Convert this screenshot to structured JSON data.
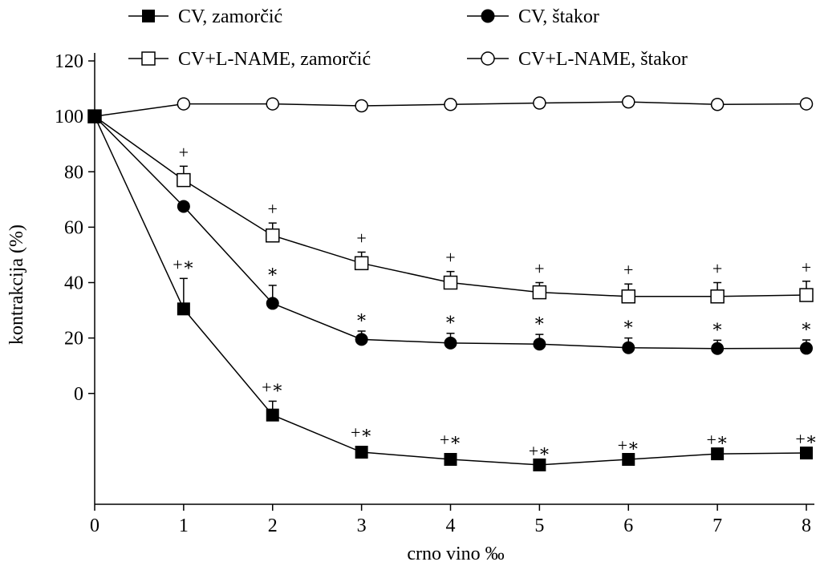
{
  "chart_data": {
    "type": "line",
    "xlabel": "crno vino ‰",
    "ylabel": "kontrakcija (%)",
    "x": [
      0,
      1,
      2,
      3,
      4,
      5,
      6,
      7,
      8
    ],
    "xlim": [
      0,
      8
    ],
    "ylim": [
      -40,
      120
    ],
    "x_ticks": [
      "0",
      "1",
      "2",
      "3",
      "4",
      "5",
      "6",
      "7",
      "8"
    ],
    "y_ticks": [
      {
        "value": 0,
        "label": "0"
      },
      {
        "value": 20,
        "label": "20"
      },
      {
        "value": 40,
        "label": "40"
      },
      {
        "value": 60,
        "label": "60"
      },
      {
        "value": 80,
        "label": "80"
      },
      {
        "value": 100,
        "label": "100"
      },
      {
        "value": 120,
        "label": "120"
      }
    ],
    "grid": false,
    "legend_placement": "top",
    "series": [
      {
        "name": "CV, zamorčić",
        "marker": "filled-square",
        "values": [
          100,
          30.5,
          -7.8,
          -21.2,
          -23.8,
          -25.8,
          -23.8,
          -21.8,
          -21.5
        ],
        "errors": [
          0,
          11,
          5,
          2,
          2,
          0,
          0,
          0,
          0
        ],
        "annotations": [
          "",
          "+∗",
          "+∗",
          "+∗",
          "+∗",
          "+∗",
          "+∗",
          "+∗",
          "+∗"
        ]
      },
      {
        "name": "CV, štakor",
        "marker": "filled-circle",
        "values": [
          100,
          67.5,
          32.5,
          19.5,
          18.2,
          17.8,
          16.5,
          16.2,
          16.3
        ],
        "errors": [
          0,
          0,
          6.5,
          3,
          3.5,
          3.5,
          3.5,
          3,
          3
        ],
        "annotations": [
          "",
          "",
          "∗",
          "∗",
          "∗",
          "∗",
          "∗",
          "∗",
          "∗"
        ]
      },
      {
        "name": "CV+L-NAME, zamorčić",
        "marker": "open-square",
        "values": [
          100,
          77,
          57,
          47,
          40,
          36.5,
          35,
          35,
          35.5
        ],
        "errors": [
          0,
          5,
          4.5,
          4,
          4,
          3.5,
          4.5,
          5,
          5
        ],
        "annotations": [
          "",
          "+",
          "+",
          "+",
          "+",
          "+",
          "+",
          "+",
          "+"
        ]
      },
      {
        "name": "CV+L-NAME, štakor",
        "marker": "open-circle",
        "values": [
          100,
          104.5,
          104.5,
          103.8,
          104.3,
          104.8,
          105.2,
          104.3,
          104.5
        ],
        "errors": [
          0,
          0,
          0,
          0,
          0,
          0,
          0,
          0,
          0
        ],
        "annotations": [
          "",
          "",
          "",
          "",
          "",
          "",
          "",
          "",
          ""
        ]
      }
    ]
  }
}
